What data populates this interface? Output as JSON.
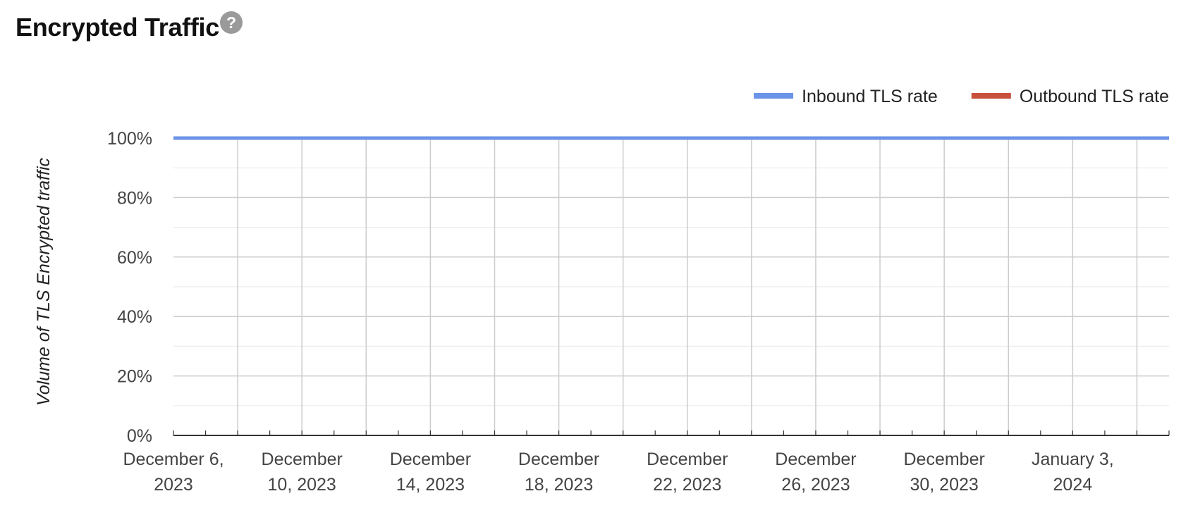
{
  "header": {
    "title": "Encrypted Traffic",
    "help_icon": "help-circle-icon"
  },
  "chart_data": {
    "type": "line",
    "xlabel": "",
    "ylabel": "Volume of TLS Encrypted traffic",
    "x_type": "date",
    "x_range": [
      "2023-12-06",
      "2024-01-06"
    ],
    "ylim": [
      0,
      100
    ],
    "y_ticks": [
      0,
      20,
      40,
      60,
      80,
      100
    ],
    "y_tick_labels": [
      "0%",
      "20%",
      "40%",
      "60%",
      "80%",
      "100%"
    ],
    "y_minor_step": 10,
    "x_ticks": [
      {
        "date": "2023-12-06",
        "label": [
          "December 6,",
          "2023"
        ]
      },
      {
        "date": "2023-12-10",
        "label": [
          "December",
          "10, 2023"
        ]
      },
      {
        "date": "2023-12-14",
        "label": [
          "December",
          "14, 2023"
        ]
      },
      {
        "date": "2023-12-18",
        "label": [
          "December",
          "18, 2023"
        ]
      },
      {
        "date": "2023-12-22",
        "label": [
          "December",
          "22, 2023"
        ]
      },
      {
        "date": "2023-12-26",
        "label": [
          "December",
          "26, 2023"
        ]
      },
      {
        "date": "2023-12-30",
        "label": [
          "December",
          "30, 2023"
        ]
      },
      {
        "date": "2024-01-03",
        "label": [
          "January 3,",
          "2024"
        ]
      }
    ],
    "x_gridline_step_days": 2,
    "x_minor_tick_step_days": 1,
    "grid": true,
    "legend_position": "top-right",
    "series": [
      {
        "name": "Inbound TLS rate",
        "color": "#6b93e8",
        "x": [
          "2023-12-06",
          "2024-01-06"
        ],
        "values": [
          100,
          100
        ]
      },
      {
        "name": "Outbound TLS rate",
        "color": "#c9503d",
        "x": [],
        "values": []
      }
    ]
  }
}
